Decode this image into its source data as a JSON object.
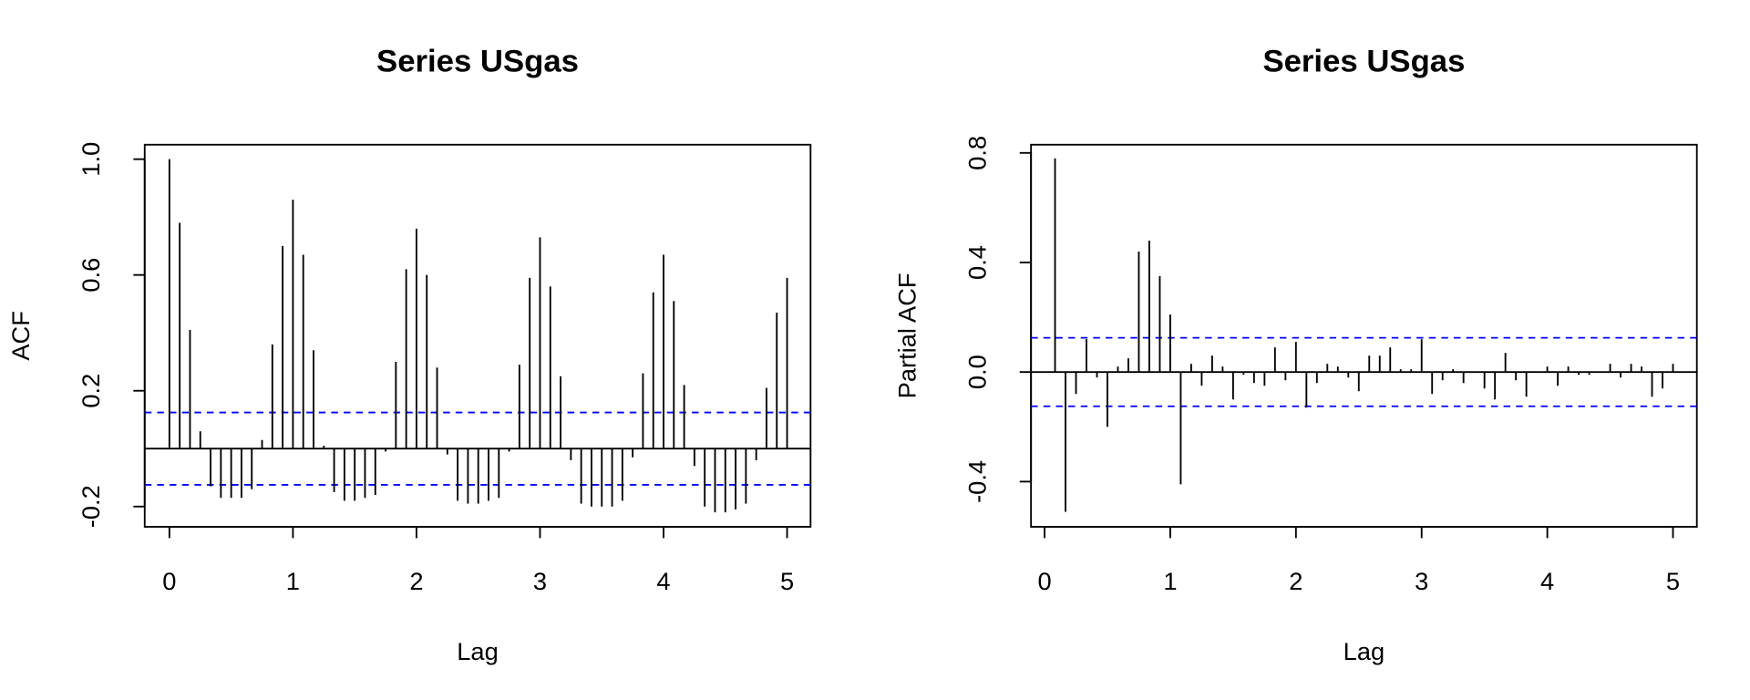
{
  "chart_data": [
    {
      "type": "acf",
      "title": "Series  USgas",
      "xlabel": "Lag",
      "ylabel": "ACF",
      "bar_color": "#000000",
      "ci_color": "#0000ff",
      "x": [
        0,
        0.0833,
        0.1667,
        0.25,
        0.3333,
        0.4167,
        0.5,
        0.5833,
        0.6667,
        0.75,
        0.8333,
        0.9167,
        1,
        1.0833,
        1.1667,
        1.25,
        1.3333,
        1.4167,
        1.5,
        1.5833,
        1.6667,
        1.75,
        1.8333,
        1.9167,
        2,
        2.0833,
        2.1667,
        2.25,
        2.3333,
        2.4167,
        2.5,
        2.5833,
        2.6667,
        2.75,
        2.8333,
        2.9167,
        3,
        3.0833,
        3.1667,
        3.25,
        3.3333,
        3.4167,
        3.5,
        3.5833,
        3.6667,
        3.75,
        3.8333,
        3.9167,
        4,
        4.0833,
        4.1667,
        4.25,
        4.3333,
        4.4167,
        4.5,
        4.5833,
        4.6667,
        4.75,
        4.8333,
        4.9167,
        5
      ],
      "values": [
        1.0,
        0.78,
        0.41,
        0.06,
        -0.13,
        -0.17,
        -0.17,
        -0.17,
        -0.14,
        0.03,
        0.36,
        0.7,
        0.86,
        0.67,
        0.34,
        0.01,
        -0.15,
        -0.18,
        -0.18,
        -0.17,
        -0.16,
        -0.01,
        0.3,
        0.62,
        0.76,
        0.6,
        0.28,
        -0.02,
        -0.18,
        -0.19,
        -0.19,
        -0.18,
        -0.17,
        -0.01,
        0.29,
        0.59,
        0.73,
        0.56,
        0.25,
        -0.04,
        -0.19,
        -0.2,
        -0.2,
        -0.2,
        -0.18,
        -0.03,
        0.26,
        0.54,
        0.67,
        0.51,
        0.22,
        -0.06,
        -0.2,
        -0.22,
        -0.22,
        -0.21,
        -0.19,
        -0.04,
        0.21,
        0.47,
        0.59
      ],
      "ci": [
        -0.125,
        0.125
      ],
      "xlim": [
        -0.2,
        5.19
      ],
      "ylim": [
        -0.27,
        1.05
      ],
      "xticks": [
        0,
        1,
        2,
        3,
        4,
        5
      ],
      "yticks": [
        -0.2,
        0.2,
        0.6,
        {
          "value": 1,
          "label": "1.0"
        }
      ]
    },
    {
      "type": "acf",
      "title": "Series  USgas",
      "xlabel": "Lag",
      "ylabel": "Partial ACF",
      "bar_color": "#000000",
      "ci_color": "#0000ff",
      "x": [
        0.0833,
        0.1667,
        0.25,
        0.3333,
        0.4167,
        0.5,
        0.5833,
        0.6667,
        0.75,
        0.8333,
        0.9167,
        1,
        1.0833,
        1.1667,
        1.25,
        1.3333,
        1.4167,
        1.5,
        1.5833,
        1.6667,
        1.75,
        1.8333,
        1.9167,
        2,
        2.0833,
        2.1667,
        2.25,
        2.3333,
        2.4167,
        2.5,
        2.5833,
        2.6667,
        2.75,
        2.8333,
        2.9167,
        3,
        3.0833,
        3.1667,
        3.25,
        3.3333,
        3.4167,
        3.5,
        3.5833,
        3.6667,
        3.75,
        3.8333,
        3.9167,
        4,
        4.0833,
        4.1667,
        4.25,
        4.3333,
        4.4167,
        4.5,
        4.5833,
        4.6667,
        4.75,
        4.8333,
        4.9167,
        5
      ],
      "values": [
        0.78,
        -0.51,
        -0.08,
        0.12,
        -0.02,
        -0.2,
        0.02,
        0.05,
        0.44,
        0.48,
        0.35,
        0.21,
        -0.41,
        0.03,
        -0.05,
        0.06,
        0.02,
        -0.1,
        -0.01,
        -0.04,
        -0.05,
        0.09,
        -0.03,
        0.11,
        -0.13,
        -0.04,
        0.03,
        0.02,
        -0.02,
        -0.07,
        0.06,
        0.06,
        0.09,
        0.01,
        0.01,
        0.12,
        -0.08,
        -0.03,
        0.01,
        -0.04,
        0.0,
        -0.06,
        -0.1,
        0.07,
        -0.03,
        -0.09,
        0.0,
        0.02,
        -0.05,
        0.02,
        -0.01,
        -0.01,
        0.0,
        0.03,
        -0.02,
        0.03,
        0.02,
        -0.09,
        -0.06,
        0.03
      ],
      "ci": [
        -0.125,
        0.125
      ],
      "xlim": [
        -0.108,
        5.19
      ],
      "ylim": [
        -0.565,
        0.83
      ],
      "xticks": [
        0,
        1,
        2,
        3,
        4,
        5
      ],
      "yticks": [
        {
          "value": -0.4,
          "label": "-0.4"
        },
        {
          "value": 0,
          "label": "0.0"
        },
        0.4,
        0.8
      ]
    }
  ]
}
